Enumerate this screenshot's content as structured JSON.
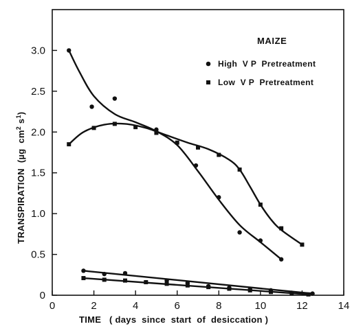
{
  "chart_data": {
    "type": "line",
    "title": "",
    "xlabel": "TIME (days since start of desiccation)",
    "ylabel": "TRANSPIRATION (µg cm² s¹)",
    "xlim": [
      0,
      14
    ],
    "ylim": [
      0,
      3.5
    ],
    "x_ticks": [
      "0",
      "2",
      "4",
      "6",
      "8",
      "10",
      "12",
      "14"
    ],
    "y_ticks": [
      "0",
      "0.5",
      "1.0",
      "1.5",
      "2.0",
      "2.5",
      "3.0"
    ],
    "grid": false,
    "legend": {
      "title": "MAIZE",
      "placement": "top-right",
      "entries": [
        {
          "marker": "circle",
          "label": "High V P Pretreatment"
        },
        {
          "marker": "square",
          "label": "Low V P Pretreatment"
        }
      ]
    },
    "series": [
      {
        "name": "High V P Pretreatment",
        "marker": "circle",
        "points": [
          [
            0.8,
            3.0
          ],
          [
            1.9,
            2.31
          ],
          [
            3.0,
            2.41
          ],
          [
            5.0,
            2.03
          ],
          [
            6.9,
            1.59
          ],
          [
            8.0,
            1.2
          ],
          [
            9.0,
            0.77
          ],
          [
            10.0,
            0.67
          ],
          [
            11.0,
            0.44
          ]
        ],
        "curve": [
          [
            0.8,
            3.0
          ],
          [
            1.3,
            2.74
          ],
          [
            2.0,
            2.44
          ],
          [
            3.0,
            2.22
          ],
          [
            4.0,
            2.12
          ],
          [
            5.0,
            2.01
          ],
          [
            6.0,
            1.84
          ],
          [
            7.0,
            1.52
          ],
          [
            8.0,
            1.17
          ],
          [
            9.0,
            0.86
          ],
          [
            10.0,
            0.65
          ],
          [
            11.0,
            0.44
          ]
        ]
      },
      {
        "name": "Low V P Pretreatment",
        "marker": "square",
        "points": [
          [
            0.8,
            1.85
          ],
          [
            2.0,
            2.05
          ],
          [
            3.0,
            2.1
          ],
          [
            4.0,
            2.06
          ],
          [
            5.0,
            1.99
          ],
          [
            6.0,
            1.87
          ],
          [
            7.0,
            1.81
          ],
          [
            8.0,
            1.72
          ],
          [
            9.0,
            1.54
          ],
          [
            10.0,
            1.11
          ],
          [
            11.0,
            0.82
          ],
          [
            12.0,
            0.62
          ]
        ],
        "curve": [
          [
            0.8,
            1.85
          ],
          [
            1.5,
            2.0
          ],
          [
            2.5,
            2.09
          ],
          [
            3.5,
            2.1
          ],
          [
            4.5,
            2.05
          ],
          [
            5.5,
            1.96
          ],
          [
            6.5,
            1.87
          ],
          [
            7.5,
            1.79
          ],
          [
            8.5,
            1.66
          ],
          [
            9.0,
            1.54
          ],
          [
            9.5,
            1.33
          ],
          [
            10.0,
            1.11
          ],
          [
            10.5,
            0.93
          ],
          [
            11.0,
            0.8
          ],
          [
            12.0,
            0.62
          ]
        ]
      },
      {
        "name": "High V P Pretreatment (lower set)",
        "marker": "circle",
        "points": [
          [
            1.5,
            0.3
          ],
          [
            2.5,
            0.26
          ],
          [
            3.5,
            0.27
          ],
          [
            5.5,
            0.18
          ],
          [
            6.5,
            0.15
          ],
          [
            7.5,
            0.11
          ],
          [
            8.5,
            0.09
          ],
          [
            9.5,
            0.07
          ],
          [
            10.5,
            0.06
          ],
          [
            11.5,
            0.03
          ],
          [
            12.5,
            0.02
          ]
        ],
        "curve": [
          [
            1.5,
            0.3
          ],
          [
            12.5,
            0.02
          ]
        ]
      },
      {
        "name": "Low V P Pretreatment (lower set)",
        "marker": "square",
        "points": [
          [
            1.5,
            0.21
          ],
          [
            2.5,
            0.19
          ],
          [
            3.5,
            0.18
          ],
          [
            4.5,
            0.16
          ],
          [
            5.5,
            0.14
          ],
          [
            6.5,
            0.12
          ],
          [
            7.5,
            0.1
          ],
          [
            8.5,
            0.08
          ],
          [
            9.5,
            0.06
          ],
          [
            10.5,
            0.04
          ],
          [
            11.5,
            0.02
          ],
          [
            12.3,
            0.01
          ]
        ],
        "curve": [
          [
            1.5,
            0.21
          ],
          [
            12.3,
            0.01
          ]
        ]
      }
    ]
  },
  "labels": {
    "legend_title": "MAIZE",
    "legend_high": "High  V P  Pretreatment",
    "legend_low": "Low  V P  Pretreatment",
    "xlabel": "TIME   ( days  since  start  of  desiccation )",
    "ylabel_main": "TRANSPIRATION",
    "ylabel_units_mu": "(µg  cm",
    "ylabel_units_exp1": "2",
    "ylabel_units_s": " s",
    "ylabel_units_exp2": "1",
    "ylabel_units_close": ")"
  }
}
